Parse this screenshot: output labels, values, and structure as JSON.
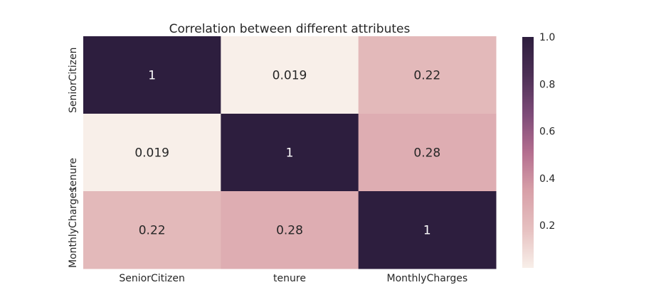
{
  "chart_data": {
    "type": "heatmap",
    "title": "Correlation between different attributes",
    "x_labels": [
      "SeniorCitizen",
      "tenure",
      "MonthlyCharges"
    ],
    "y_labels": [
      "SeniorCitizen",
      "tenure",
      "MonthlyCharges"
    ],
    "values": [
      [
        1,
        0.019,
        0.22
      ],
      [
        0.019,
        1,
        0.28
      ],
      [
        0.22,
        0.28,
        1
      ]
    ],
    "annotations": [
      [
        "1",
        "0.019",
        "0.22"
      ],
      [
        "0.019",
        "1",
        "0.28"
      ],
      [
        "0.22",
        "0.28",
        "1"
      ]
    ],
    "colorbar": {
      "vmin": 0.019,
      "vmax": 1.0,
      "ticks": [
        0.2,
        0.4,
        0.6,
        0.8,
        1.0
      ],
      "tick_labels": [
        "0.2",
        "0.4",
        "0.6",
        "0.8",
        "1.0"
      ],
      "palette": [
        "#f8efe9",
        "#e6c0c0",
        "#d8a0a8",
        "#b46e8f",
        "#7d4b78",
        "#4d3056",
        "#2d1e3e"
      ]
    },
    "grid": false
  }
}
